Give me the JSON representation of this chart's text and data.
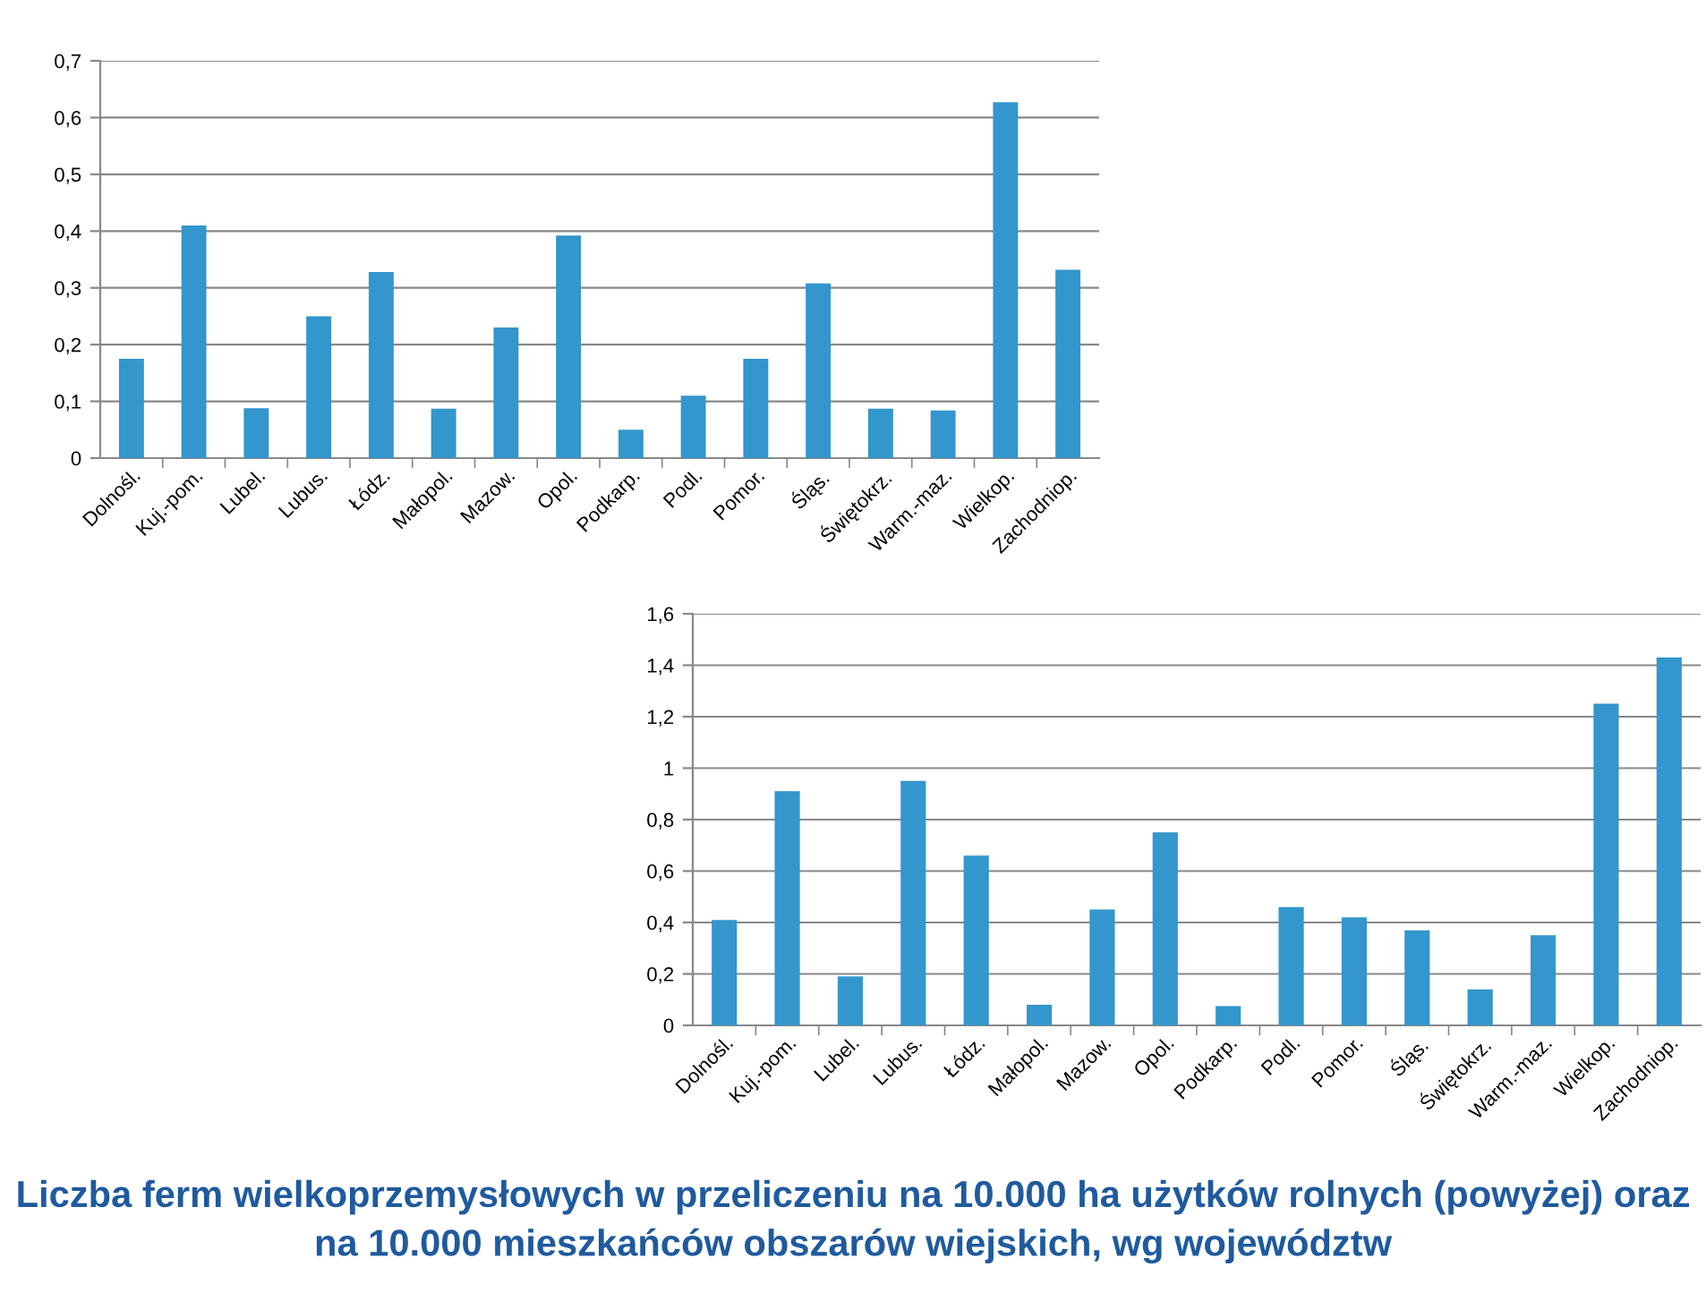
{
  "chart_data": [
    {
      "type": "bar",
      "categories": [
        "Dolnośl.",
        "Kuj.-pom.",
        "Lubel.",
        "Lubus.",
        "Łódz.",
        "Małopol.",
        "Mazow.",
        "Opol.",
        "Podkarp.",
        "Podl.",
        "Pomor.",
        "Śląs.",
        "Świętokrz.",
        "Warm.-maz.",
        "Wielkop.",
        "Zachodniop."
      ],
      "values": [
        0.175,
        0.41,
        0.088,
        0.25,
        0.328,
        0.087,
        0.23,
        0.392,
        0.05,
        0.11,
        0.175,
        0.308,
        0.087,
        0.084,
        0.627,
        0.332
      ],
      "color": "#3396cc",
      "ylim": [
        0,
        0.7
      ],
      "yticks": [
        0,
        {
          "value": 0.1,
          "label": "0,1"
        },
        {
          "value": 0.2,
          "label": "0,2"
        },
        {
          "value": 0.3,
          "label": "0,3"
        },
        {
          "value": 0.4,
          "label": "0,4"
        },
        {
          "value": 0.5,
          "label": "0,5"
        },
        {
          "value": 0.6,
          "label": "0,6"
        },
        {
          "value": 0.7,
          "label": "0,7"
        }
      ],
      "grid": "y",
      "legend": false
    },
    {
      "type": "bar",
      "categories": [
        "Dolnośl.",
        "Kuj.-pom.",
        "Lubel.",
        "Lubus.",
        "Łódz.",
        "Małopol.",
        "Mazow.",
        "Opol.",
        "Podkarp.",
        "Podl.",
        "Pomor.",
        "Śląs.",
        "Świętokrz.",
        "Warm.-maz.",
        "Wielkop.",
        "Zachodniop."
      ],
      "values": [
        0.41,
        0.91,
        0.19,
        0.95,
        0.66,
        0.08,
        0.45,
        0.75,
        0.075,
        0.46,
        0.42,
        0.37,
        0.14,
        0.35,
        1.25,
        1.43
      ],
      "color": "#3396cc",
      "ylim": [
        0,
        1.6
      ],
      "yticks": [
        0,
        {
          "value": 0.2,
          "label": "0,2"
        },
        {
          "value": 0.4,
          "label": "0,4"
        },
        {
          "value": 0.6,
          "label": "0,6"
        },
        {
          "value": 0.8,
          "label": "0,8"
        },
        1,
        {
          "value": 1.2,
          "label": "1,2"
        },
        {
          "value": 1.4,
          "label": "1,4"
        },
        {
          "value": 1.6,
          "label": "1,6"
        }
      ],
      "grid": "y",
      "legend": false,
      "annotations": [
        "Liczba ferm wielkoprzemysłowych w przeliczeniu na 10.000 ha użytków rolnych (powyżej) oraz na 10.000 mieszkańców obszarów wiejskich, wg województw"
      ]
    }
  ]
}
